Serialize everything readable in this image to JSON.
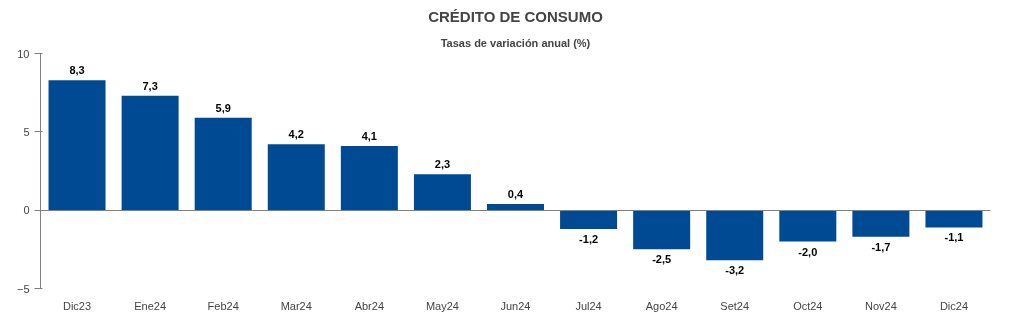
{
  "chart_data": {
    "type": "bar",
    "title": "CRÉDITO DE CONSUMO",
    "subtitle": "Tasas de variación anual (%)",
    "categories": [
      "Dic23",
      "Ene24",
      "Feb24",
      "Mar24",
      "Abr24",
      "May24",
      "Jun24",
      "Jul24",
      "Ago24",
      "Set24",
      "Oct24",
      "Nov24",
      "Dic24"
    ],
    "values": [
      8.3,
      7.3,
      5.9,
      4.2,
      4.1,
      2.3,
      0.4,
      -1.2,
      -2.5,
      -3.2,
      -2.0,
      -1.7,
      -1.1
    ],
    "value_labels": [
      "8,3",
      "7,3",
      "5,9",
      "4,2",
      "4,1",
      "2,3",
      "0,4",
      "-1,2",
      "-2,5",
      "-3,2",
      "-2,0",
      "-1,7",
      "-1,1"
    ],
    "color": "#004a93",
    "ylim": [
      -5,
      10
    ],
    "yticks": [
      -5,
      0,
      5,
      10
    ]
  }
}
